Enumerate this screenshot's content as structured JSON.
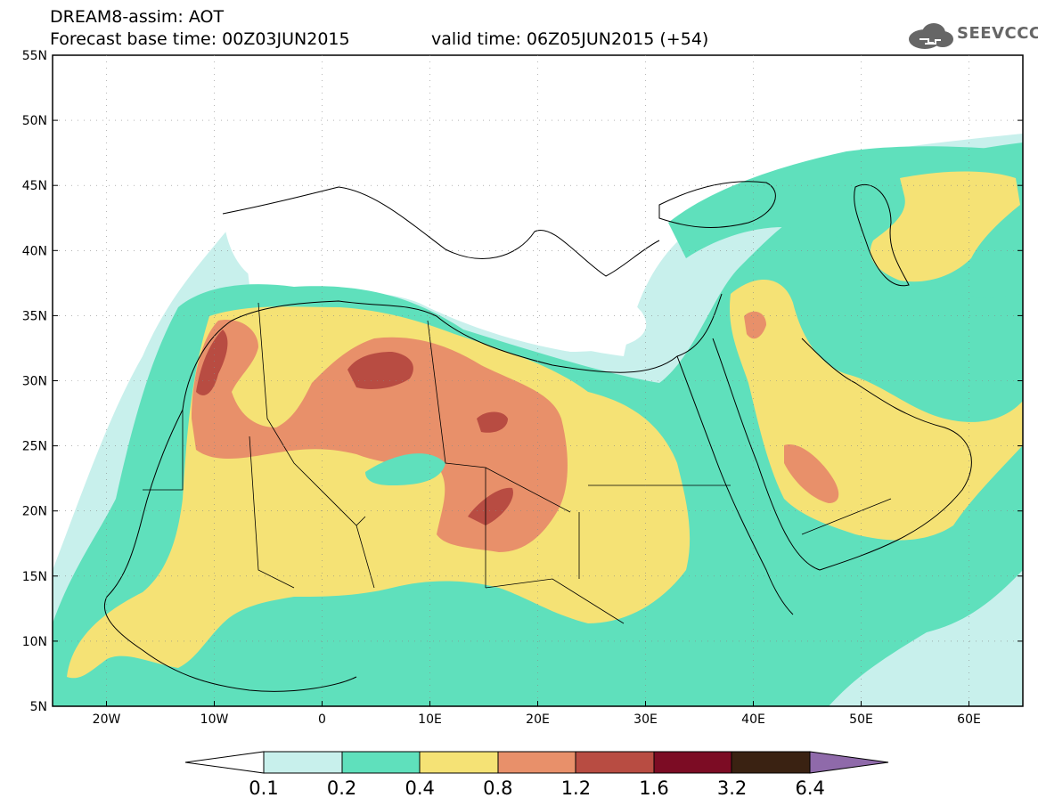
{
  "header": {
    "model_line": "DREAM8-assim: AOT",
    "base_time": "Forecast base time: 00Z03JUN2015",
    "valid_time": "valid time: 06Z05JUN2015 (+54)"
  },
  "logo": {
    "text": "SEEVCCC",
    "icon": "cloud-logo-icon"
  },
  "map": {
    "lat_ticks": [
      "55N",
      "50N",
      "45N",
      "40N",
      "35N",
      "30N",
      "25N",
      "20N",
      "15N",
      "10N",
      "5N"
    ],
    "lon_ticks": [
      "20W",
      "10W",
      "0",
      "10E",
      "20E",
      "30E",
      "40E",
      "50E",
      "60E"
    ],
    "lon_range": [
      -25,
      65
    ],
    "lat_range": [
      5,
      55
    ]
  },
  "colorbar": {
    "labels": [
      "0.1",
      "0.2",
      "0.4",
      "0.8",
      "1.2",
      "1.6",
      "3.2",
      "6.4"
    ],
    "colors": {
      "below": "#ffffff",
      "c1": "#c8f0ec",
      "c2": "#5fe0bc",
      "c3": "#f5e275",
      "c4": "#e8906a",
      "c5": "#b84c42",
      "c6": "#7c0c24",
      "c7": "#3a2212",
      "above": "#8f6aaa"
    }
  }
}
